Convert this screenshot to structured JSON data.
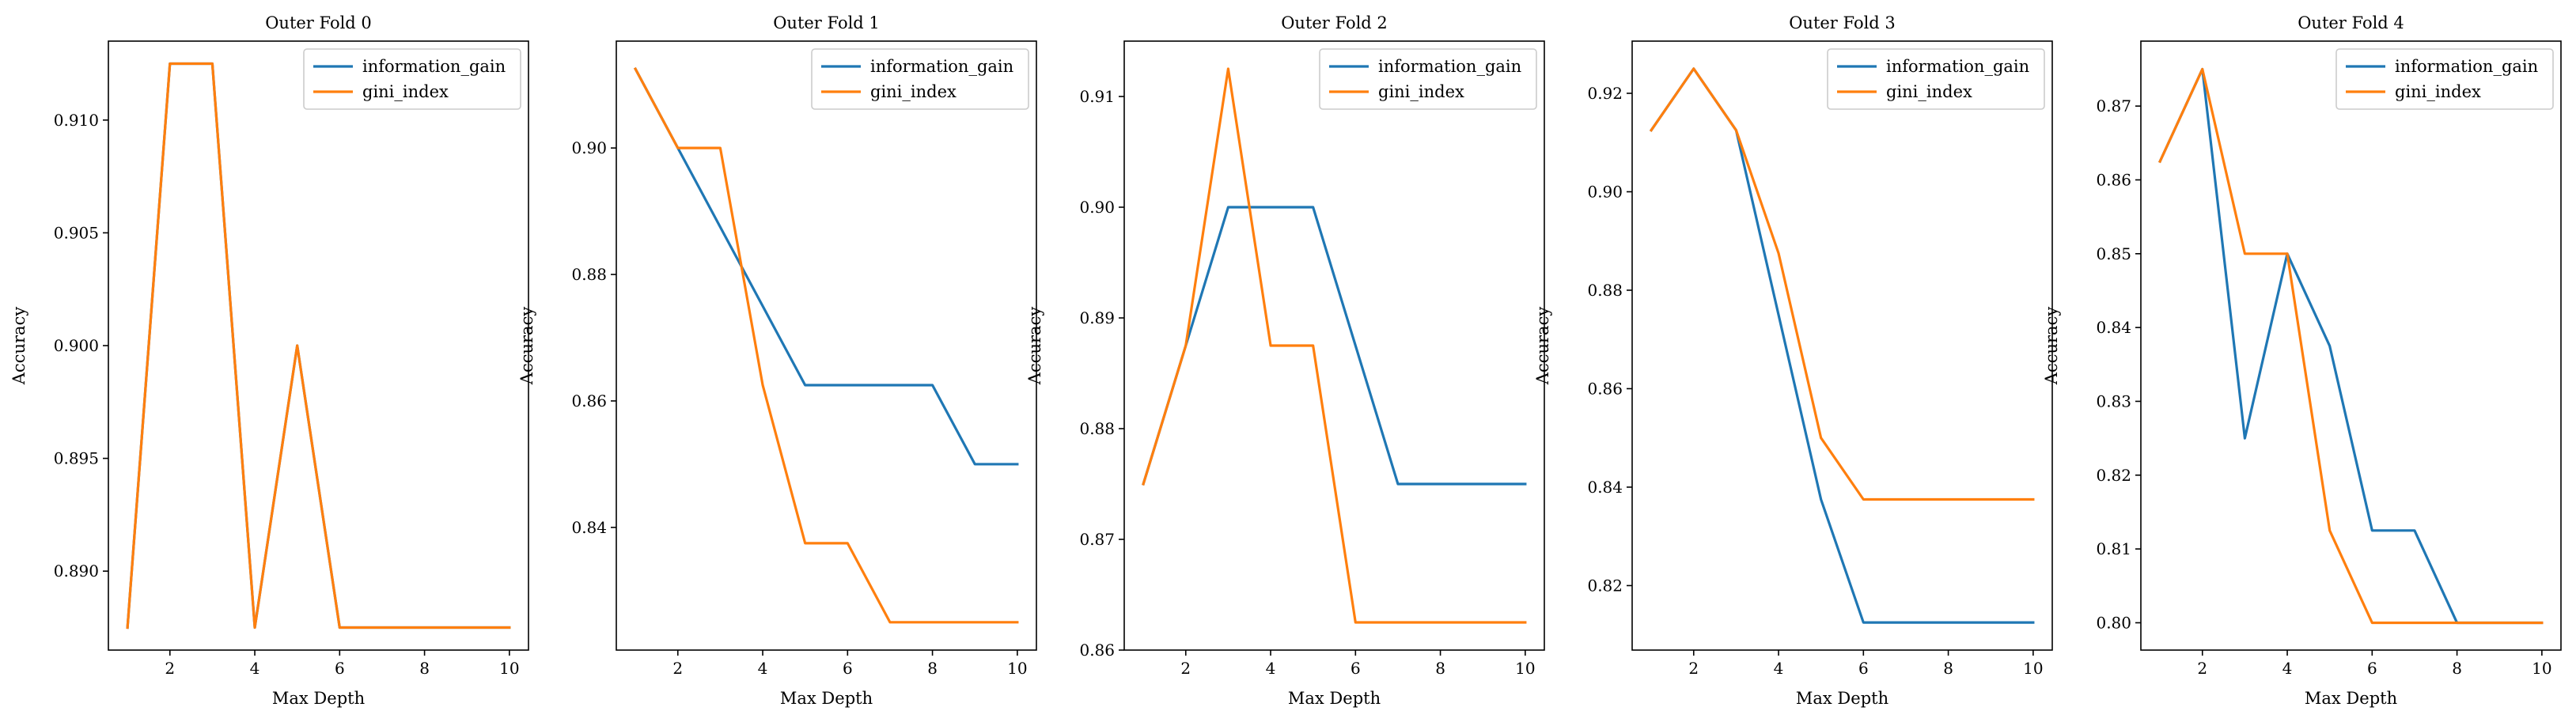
{
  "figure": {
    "colors": {
      "information_gain": "#1f77b4",
      "gini_index": "#ff7f0e"
    }
  },
  "chart_data": [
    {
      "type": "line",
      "title": "Outer Fold 0",
      "xlabel": "Max Depth",
      "ylabel": "Accuracy",
      "x": [
        1,
        2,
        3,
        4,
        5,
        6,
        7,
        8,
        9,
        10
      ],
      "xlim": [
        0.55,
        10.45
      ],
      "ylim": [
        0.8865,
        0.9135
      ],
      "xticks": [
        2,
        4,
        6,
        8,
        10
      ],
      "yticks": [
        0.89,
        0.895,
        0.9,
        0.905,
        0.91
      ],
      "ytick_labels": [
        "0.890",
        "0.895",
        "0.900",
        "0.905",
        "0.910"
      ],
      "legend_position": "upper right",
      "series": [
        {
          "name": "information_gain",
          "values": [
            0.8875,
            0.9125,
            0.9125,
            0.8875,
            0.9,
            0.8875,
            0.8875,
            0.8875,
            0.8875,
            0.8875
          ]
        },
        {
          "name": "gini_index",
          "values": [
            0.8875,
            0.9125,
            0.9125,
            0.8875,
            0.9,
            0.8875,
            0.8875,
            0.8875,
            0.8875,
            0.8875
          ]
        }
      ]
    },
    {
      "type": "line",
      "title": "Outer Fold 1",
      "xlabel": "Max Depth",
      "ylabel": "Accuracy",
      "x": [
        1,
        2,
        3,
        4,
        5,
        6,
        7,
        8,
        9,
        10
      ],
      "xlim": [
        0.55,
        10.45
      ],
      "ylim": [
        0.8206,
        0.9169
      ],
      "xticks": [
        2,
        4,
        6,
        8,
        10
      ],
      "yticks": [
        0.84,
        0.86,
        0.88,
        0.9
      ],
      "ytick_labels": [
        "0.84",
        "0.86",
        "0.88",
        "0.90"
      ],
      "legend_position": "upper right",
      "series": [
        {
          "name": "information_gain",
          "values": [
            0.9125,
            0.9,
            0.8875,
            0.875,
            0.8625,
            0.8625,
            0.8625,
            0.8625,
            0.85,
            0.85
          ]
        },
        {
          "name": "gini_index",
          "values": [
            0.9125,
            0.9,
            0.9,
            0.8625,
            0.8375,
            0.8375,
            0.825,
            0.825,
            0.825,
            0.825
          ]
        }
      ]
    },
    {
      "type": "line",
      "title": "Outer Fold 2",
      "xlabel": "Max Depth",
      "ylabel": "Accuracy",
      "x": [
        1,
        2,
        3,
        4,
        5,
        6,
        7,
        8,
        9,
        10
      ],
      "xlim": [
        0.55,
        10.45
      ],
      "ylim": [
        0.86,
        0.915
      ],
      "xticks": [
        2,
        4,
        6,
        8,
        10
      ],
      "yticks": [
        0.86,
        0.87,
        0.88,
        0.89,
        0.9,
        0.91
      ],
      "ytick_labels": [
        "0.86",
        "0.87",
        "0.88",
        "0.89",
        "0.90",
        "0.91"
      ],
      "legend_position": "upper right",
      "series": [
        {
          "name": "information_gain",
          "values": [
            0.875,
            0.8875,
            0.9,
            0.9,
            0.9,
            0.8875,
            0.875,
            0.875,
            0.875,
            0.875
          ]
        },
        {
          "name": "gini_index",
          "values": [
            0.875,
            0.8875,
            0.9125,
            0.8875,
            0.8875,
            0.8625,
            0.8625,
            0.8625,
            0.8625,
            0.8625
          ]
        }
      ]
    },
    {
      "type": "line",
      "title": "Outer Fold 3",
      "xlabel": "Max Depth",
      "ylabel": "Accuracy",
      "x": [
        1,
        2,
        3,
        4,
        5,
        6,
        7,
        8,
        9,
        10
      ],
      "xlim": [
        0.55,
        10.45
      ],
      "ylim": [
        0.8069,
        0.9306
      ],
      "xticks": [
        2,
        4,
        6,
        8,
        10
      ],
      "yticks": [
        0.82,
        0.84,
        0.86,
        0.88,
        0.9,
        0.92
      ],
      "ytick_labels": [
        "0.82",
        "0.84",
        "0.86",
        "0.88",
        "0.90",
        "0.92"
      ],
      "legend_position": "upper right",
      "series": [
        {
          "name": "information_gain",
          "values": [
            0.9125,
            0.925,
            0.9125,
            0.875,
            0.8375,
            0.8125,
            0.8125,
            0.8125,
            0.8125,
            0.8125
          ]
        },
        {
          "name": "gini_index",
          "values": [
            0.9125,
            0.925,
            0.9125,
            0.8875,
            0.85,
            0.8375,
            0.8375,
            0.8375,
            0.8375,
            0.8375
          ]
        }
      ]
    },
    {
      "type": "line",
      "title": "Outer Fold 4",
      "xlabel": "Max Depth",
      "ylabel": "Accuracy",
      "x": [
        1,
        2,
        3,
        4,
        5,
        6,
        7,
        8,
        9,
        10
      ],
      "xlim": [
        0.55,
        10.45
      ],
      "ylim": [
        0.7963,
        0.8788
      ],
      "xticks": [
        2,
        4,
        6,
        8,
        10
      ],
      "yticks": [
        0.8,
        0.81,
        0.82,
        0.83,
        0.84,
        0.85,
        0.86,
        0.87
      ],
      "ytick_labels": [
        "0.80",
        "0.81",
        "0.82",
        "0.83",
        "0.84",
        "0.85",
        "0.86",
        "0.87"
      ],
      "legend_position": "upper right",
      "series": [
        {
          "name": "information_gain",
          "values": [
            0.8625,
            0.875,
            0.825,
            0.85,
            0.8375,
            0.8125,
            0.8125,
            0.8,
            0.8,
            0.8
          ]
        },
        {
          "name": "gini_index",
          "values": [
            0.8625,
            0.875,
            0.85,
            0.85,
            0.8125,
            0.8,
            0.8,
            0.8,
            0.8,
            0.8
          ]
        }
      ]
    }
  ]
}
